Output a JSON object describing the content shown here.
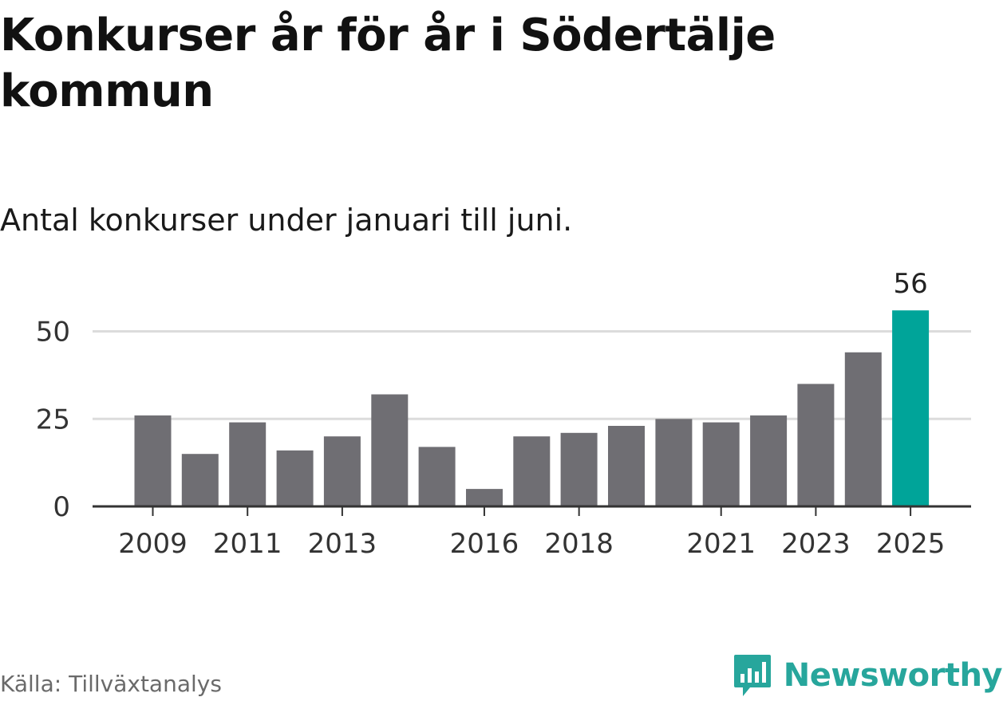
{
  "title": "Konkurser år för år i Södertälje kommun",
  "subtitle": "Antal konkurser under januari till juni.",
  "source": "Källa: Tillväxtanalys",
  "brand": {
    "name": "Newsworthy"
  },
  "colors": {
    "bar": "#6f6e73",
    "highlight": "#00a499",
    "grid": "#dcdcdc",
    "axis": "#333333",
    "brand": "#27a69c"
  },
  "chart_data": {
    "type": "bar",
    "categories": [
      "2009",
      "2010",
      "2011",
      "2012",
      "2013",
      "2014",
      "2015",
      "2016",
      "2017",
      "2018",
      "2019",
      "2020",
      "2021",
      "2022",
      "2023",
      "2024",
      "2025"
    ],
    "values": [
      26,
      15,
      24,
      16,
      20,
      32,
      17,
      5,
      20,
      21,
      23,
      25,
      24,
      26,
      35,
      44,
      56
    ],
    "ylim": [
      0,
      56
    ],
    "y_ticks": [
      0,
      25,
      50
    ],
    "x_tick_labels": [
      "2009",
      "2011",
      "2013",
      "2016",
      "2018",
      "2021",
      "2023",
      "2025"
    ],
    "highlight_category": "2025",
    "highlight_label": "56",
    "grid": true,
    "xlabel": "",
    "ylabel": ""
  }
}
